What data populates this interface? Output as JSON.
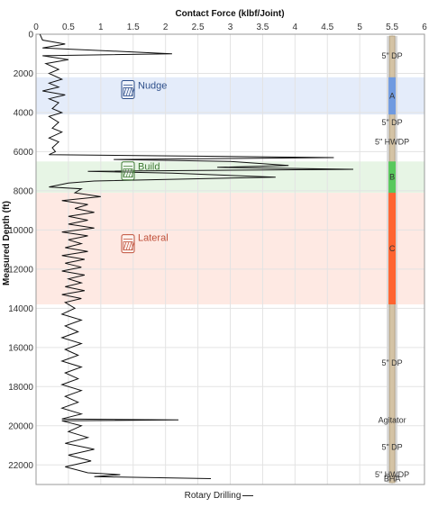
{
  "chart_data": {
    "type": "line",
    "title": "Contact Force (klbf/Joint)",
    "xlabel": "Contact Force (klbf/Joint)",
    "ylabel": "Measured Depth (ft)",
    "xlim": [
      0,
      6
    ],
    "ylim": [
      0,
      23000
    ],
    "y_inverted": true,
    "x_ticks": [
      "0",
      "0.5",
      "1",
      "1.5",
      "2",
      "2.5",
      "3",
      "3.5",
      "4",
      "4.5",
      "5",
      "5.5",
      "6"
    ],
    "y_ticks": [
      "0",
      "2000",
      "4000",
      "6000",
      "8000",
      "10000",
      "12000",
      "14000",
      "16000",
      "18000",
      "20000",
      "22000"
    ],
    "grid": true,
    "legend": {
      "position": "bottom",
      "entries": [
        "Rotary Drilling"
      ]
    },
    "series": [
      {
        "name": "Rotary Drilling",
        "color": "#111111",
        "points": [
          [
            0.06,
            0
          ],
          [
            0.1,
            300
          ],
          [
            0.45,
            500
          ],
          [
            0.1,
            700
          ],
          [
            2.1,
            1000
          ],
          [
            0.1,
            1100
          ],
          [
            0.5,
            1300
          ],
          [
            0.15,
            1500
          ],
          [
            0.35,
            1800
          ],
          [
            0.2,
            2000
          ],
          [
            0.4,
            2300
          ],
          [
            0.2,
            2500
          ],
          [
            0.35,
            2700
          ],
          [
            0.1,
            2900
          ],
          [
            0.45,
            3100
          ],
          [
            0.2,
            3300
          ],
          [
            0.35,
            3500
          ],
          [
            0.25,
            3800
          ],
          [
            0.4,
            4000
          ],
          [
            0.2,
            4200
          ],
          [
            0.35,
            4500
          ],
          [
            0.25,
            4800
          ],
          [
            0.4,
            5000
          ],
          [
            0.2,
            5300
          ],
          [
            0.35,
            5500
          ],
          [
            0.25,
            5800
          ],
          [
            0.3,
            6000
          ],
          [
            0.2,
            6150
          ],
          [
            4.6,
            6300
          ],
          [
            1.2,
            6400
          ],
          [
            3.0,
            6500
          ],
          [
            3.9,
            6700
          ],
          [
            2.8,
            6800
          ],
          [
            4.9,
            6900
          ],
          [
            0.8,
            7000
          ],
          [
            2.1,
            7100
          ],
          [
            3.7,
            7300
          ],
          [
            0.9,
            7500
          ],
          [
            0.5,
            7600
          ],
          [
            0.2,
            7800
          ],
          [
            0.7,
            7900
          ],
          [
            0.6,
            8100
          ],
          [
            1.0,
            8300
          ],
          [
            0.4,
            8500
          ],
          [
            0.8,
            8700
          ],
          [
            0.6,
            8900
          ],
          [
            0.9,
            9100
          ],
          [
            0.5,
            9300
          ],
          [
            0.8,
            9500
          ],
          [
            0.5,
            9700
          ],
          [
            0.9,
            9900
          ],
          [
            0.4,
            10100
          ],
          [
            0.8,
            10300
          ],
          [
            0.5,
            10500
          ],
          [
            0.7,
            10700
          ],
          [
            0.45,
            10900
          ],
          [
            0.8,
            11100
          ],
          [
            0.4,
            11300
          ],
          [
            0.75,
            11500
          ],
          [
            0.45,
            11700
          ],
          [
            0.7,
            11900
          ],
          [
            0.4,
            12100
          ],
          [
            0.75,
            12300
          ],
          [
            0.5,
            12500
          ],
          [
            0.7,
            12700
          ],
          [
            0.45,
            12900
          ],
          [
            0.75,
            13100
          ],
          [
            0.4,
            13300
          ],
          [
            0.7,
            13500
          ],
          [
            0.45,
            13700
          ],
          [
            0.6,
            14000
          ],
          [
            0.4,
            14300
          ],
          [
            0.7,
            14600
          ],
          [
            0.45,
            14900
          ],
          [
            0.65,
            15200
          ],
          [
            0.4,
            15500
          ],
          [
            0.7,
            15800
          ],
          [
            0.45,
            16100
          ],
          [
            0.65,
            16400
          ],
          [
            0.4,
            16700
          ],
          [
            0.7,
            17000
          ],
          [
            0.45,
            17300
          ],
          [
            0.65,
            17600
          ],
          [
            0.4,
            17900
          ],
          [
            0.7,
            18200
          ],
          [
            0.45,
            18500
          ],
          [
            0.65,
            18800
          ],
          [
            0.4,
            19100
          ],
          [
            0.7,
            19400
          ],
          [
            0.4,
            19650
          ],
          [
            2.2,
            19700
          ],
          [
            0.4,
            19750
          ],
          [
            0.7,
            20000
          ],
          [
            0.5,
            20300
          ],
          [
            0.8,
            20600
          ],
          [
            0.45,
            20900
          ],
          [
            0.9,
            21200
          ],
          [
            0.5,
            21500
          ],
          [
            0.85,
            21800
          ],
          [
            0.45,
            22100
          ],
          [
            0.8,
            22400
          ],
          [
            1.3,
            22500
          ],
          [
            0.9,
            22600
          ],
          [
            2.7,
            22700
          ]
        ]
      }
    ],
    "bands": [
      {
        "label": "Nudge",
        "y_from": 2200,
        "y_to": 4100,
        "fill": "#dbe5f8",
        "text_color": "#2e4f8a"
      },
      {
        "label": "Build",
        "y_from": 6500,
        "y_to": 8100,
        "fill": "#dff2dc",
        "text_color": "#3f7a35"
      },
      {
        "label": "Lateral",
        "y_from": 8100,
        "y_to": 13800,
        "fill": "#fde1da",
        "text_color": "#c0503a"
      }
    ],
    "string_track": {
      "x": 5.5,
      "pipe_color": "#d4c3a5",
      "pipe_edge_color": "#a08a66",
      "segments": [
        {
          "label": "A",
          "y_from": 2200,
          "y_to": 4100,
          "color": "#6f9ae0"
        },
        {
          "label": "B",
          "y_from": 6500,
          "y_to": 8100,
          "color": "#58c85c"
        },
        {
          "label": "C",
          "y_from": 8100,
          "y_to": 13800,
          "color": "#ff6430"
        }
      ],
      "labels": [
        {
          "text": "5\" DP",
          "y": 1100
        },
        {
          "text": "5\" DP",
          "y": 4500
        },
        {
          "text": "5\" HWDP",
          "y": 5500
        },
        {
          "text": "5\" DP",
          "y": 16800
        },
        {
          "text": "Agitator",
          "y": 19700
        },
        {
          "text": "5\" DP",
          "y": 21100
        },
        {
          "text": "5\" HWDP",
          "y": 22500
        },
        {
          "text": "BHA",
          "y": 22700
        }
      ]
    }
  }
}
